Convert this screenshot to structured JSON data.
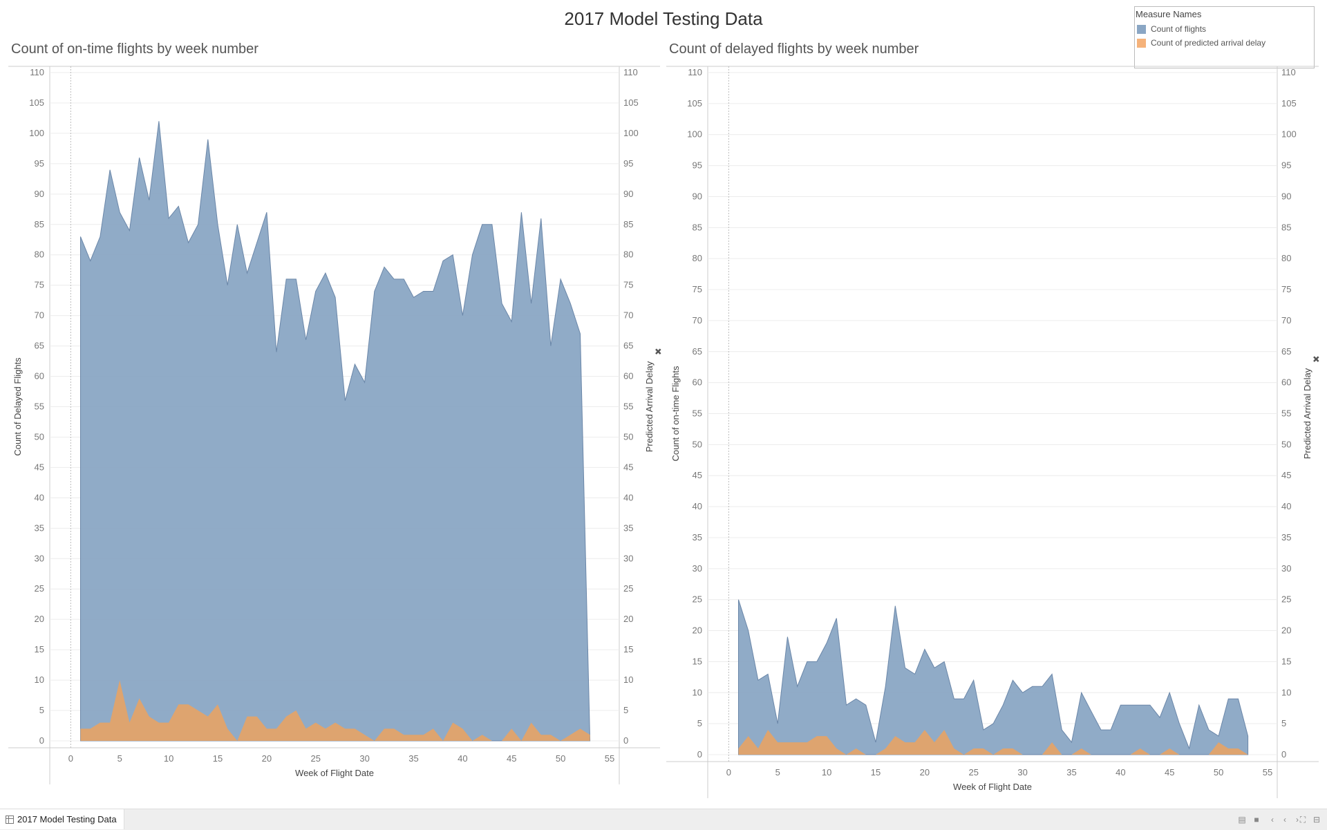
{
  "dashboard": {
    "title": "2017 Model Testing Data",
    "tab_label": "2017 Model Testing Data"
  },
  "legend": {
    "title": "Measure Names",
    "items": [
      {
        "label": "Count of flights",
        "color": "#8aa6c4"
      },
      {
        "label": "Count of predicted arrival delay",
        "color": "#f5b27a"
      }
    ]
  },
  "colors": {
    "flights_fill": "#8aa6c4",
    "flights_line": "#6a86a8",
    "predicted_fill": "#e3a36a",
    "grid": "#ececec",
    "axis": "#cccccc"
  },
  "chart_data": [
    {
      "type": "area",
      "title": "Count of on-time flights by week number",
      "xlabel": "Week of Flight Date",
      "ylabel": "Count of Delayed Flights",
      "y2label": "Predicted Arrival Delay",
      "xlim": [
        -2,
        55
      ],
      "ylim": [
        0,
        110
      ],
      "x_ticks": [
        0,
        5,
        10,
        15,
        20,
        25,
        30,
        35,
        40,
        45,
        50,
        55
      ],
      "y_ticks": [
        0,
        5,
        10,
        15,
        20,
        25,
        30,
        35,
        40,
        45,
        50,
        55,
        60,
        65,
        70,
        75,
        80,
        85,
        90,
        95,
        100,
        105,
        110
      ],
      "x": [
        1,
        2,
        3,
        4,
        5,
        6,
        7,
        8,
        9,
        10,
        11,
        12,
        13,
        14,
        15,
        16,
        17,
        18,
        19,
        20,
        21,
        22,
        23,
        24,
        25,
        26,
        27,
        28,
        29,
        30,
        31,
        32,
        33,
        34,
        35,
        36,
        37,
        38,
        39,
        40,
        41,
        42,
        43,
        44,
        45,
        46,
        47,
        48,
        49,
        50,
        51,
        52,
        53
      ],
      "series": [
        {
          "name": "Count of flights",
          "values": [
            83,
            79,
            83,
            94,
            87,
            84,
            96,
            89,
            102,
            86,
            88,
            82,
            85,
            99,
            85,
            75,
            85,
            77,
            82,
            87,
            64,
            76,
            76,
            66,
            74,
            77,
            73,
            56,
            62,
            59,
            74,
            78,
            76,
            76,
            73,
            74,
            74,
            79,
            80,
            70,
            80,
            85,
            85,
            72,
            69,
            87,
            72,
            86,
            65,
            76,
            72,
            67,
            0
          ]
        },
        {
          "name": "Count of predicted arrival delay",
          "values": [
            2,
            2,
            3,
            3,
            10,
            3,
            7,
            4,
            3,
            3,
            6,
            6,
            5,
            4,
            6,
            2,
            0,
            4,
            4,
            2,
            2,
            4,
            5,
            2,
            3,
            2,
            3,
            2,
            2,
            1,
            0,
            2,
            2,
            1,
            1,
            1,
            2,
            0,
            3,
            2,
            0,
            1,
            0,
            0,
            2,
            0,
            3,
            1,
            1,
            0,
            1,
            2,
            1
          ]
        }
      ]
    },
    {
      "type": "area",
      "title": "Count of delayed flights by week number",
      "xlabel": "Week of Flight Date",
      "ylabel": "Count of on-time Flights",
      "y2label": "Predicted Arrival Delay",
      "xlim": [
        -2,
        55
      ],
      "ylim": [
        0,
        110
      ],
      "x_ticks": [
        0,
        5,
        10,
        15,
        20,
        25,
        30,
        35,
        40,
        45,
        50,
        55
      ],
      "y_ticks": [
        0,
        5,
        10,
        15,
        20,
        25,
        30,
        35,
        40,
        45,
        50,
        55,
        60,
        65,
        70,
        75,
        80,
        85,
        90,
        95,
        100,
        105,
        110
      ],
      "x": [
        1,
        2,
        3,
        4,
        5,
        6,
        7,
        8,
        9,
        10,
        11,
        12,
        13,
        14,
        15,
        16,
        17,
        18,
        19,
        20,
        21,
        22,
        23,
        24,
        25,
        26,
        27,
        28,
        29,
        30,
        31,
        32,
        33,
        34,
        35,
        36,
        37,
        38,
        39,
        40,
        41,
        42,
        43,
        44,
        45,
        46,
        47,
        48,
        49,
        50,
        51,
        52,
        53
      ],
      "series": [
        {
          "name": "Count of flights",
          "values": [
            25,
            20,
            12,
            13,
            5,
            19,
            11,
            15,
            15,
            18,
            22,
            8,
            9,
            8,
            2,
            11,
            24,
            14,
            13,
            17,
            14,
            15,
            9,
            9,
            12,
            4,
            5,
            8,
            12,
            10,
            11,
            11,
            13,
            4,
            2,
            10,
            7,
            4,
            4,
            8,
            8,
            8,
            8,
            6,
            10,
            5,
            1,
            8,
            4,
            3,
            9,
            9,
            3
          ]
        },
        {
          "name": "Count of predicted arrival delay",
          "values": [
            1,
            3,
            1,
            4,
            2,
            2,
            2,
            2,
            3,
            3,
            1,
            0,
            1,
            0,
            0,
            1,
            3,
            2,
            2,
            4,
            2,
            4,
            1,
            0,
            1,
            1,
            0,
            1,
            1,
            0,
            0,
            0,
            2,
            0,
            0,
            1,
            0,
            0,
            0,
            0,
            0,
            1,
            0,
            0,
            1,
            0,
            0,
            0,
            0,
            2,
            1,
            1,
            0
          ]
        }
      ]
    }
  ]
}
